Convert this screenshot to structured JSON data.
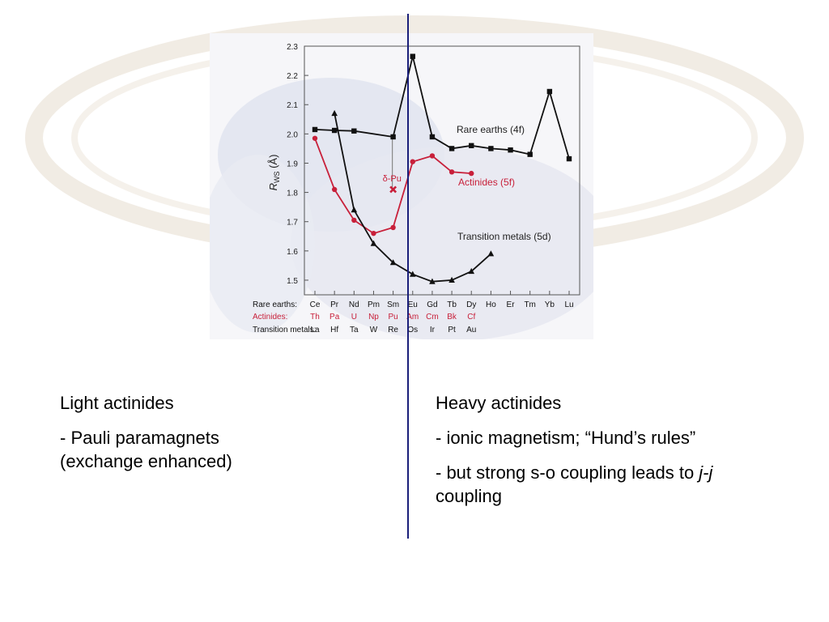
{
  "slide": {
    "left": {
      "heading": "Light actinides",
      "line1": "- Pauli paramagnets",
      "line2": "(exchange enhanced)"
    },
    "right": {
      "heading": "Heavy actinides",
      "bullet1": "- ionic magnetism; “Hund’s rules”",
      "bullet2_pre": "- but strong s-o coupling leads to ",
      "bullet2_italic": "j-j",
      "bullet2_post": "coupling"
    }
  },
  "colors": {
    "rare_earths": "#111111",
    "actinides": "#c8203a",
    "transition_metals": "#111111",
    "divider": "#1a1f7a"
  },
  "chart_data": {
    "type": "line",
    "ylabel_main": "R",
    "ylabel_sub": "WS",
    "ylabel_unit": " (Å)",
    "ylim": [
      1.45,
      2.3
    ],
    "yticks": [
      "1.5",
      "1.6",
      "1.7",
      "1.8",
      "1.9",
      "2.0",
      "2.1",
      "2.2",
      "2.3"
    ],
    "row_labels": [
      "Rare earths:",
      "Actinides:",
      "Transition metals:"
    ],
    "x_rare_earths": [
      "Ce",
      "Pr",
      "Nd",
      "Pm",
      "Sm",
      "Eu",
      "Gd",
      "Tb",
      "Dy",
      "Ho",
      "Er",
      "Tm",
      "Yb",
      "Lu"
    ],
    "x_actinides": [
      "Th",
      "Pa",
      "U",
      "Np",
      "Pu",
      "Am",
      "Cm",
      "Bk",
      "Cf"
    ],
    "x_transition_metals": [
      "La",
      "Hf",
      "Ta",
      "W",
      "Re",
      "Os",
      "Ir",
      "Pt",
      "Au"
    ],
    "series": [
      {
        "name": "Rare earths (4f)",
        "marker": "square",
        "points": [
          [
            0,
            2.015
          ],
          [
            1,
            2.012
          ],
          [
            2,
            2.01
          ],
          [
            4,
            1.99
          ],
          [
            5,
            2.265
          ],
          [
            6,
            1.99
          ],
          [
            7,
            1.95
          ],
          [
            8,
            1.96
          ],
          [
            9,
            1.95
          ],
          [
            10,
            1.945
          ],
          [
            11,
            1.93
          ],
          [
            12,
            2.145
          ],
          [
            13,
            1.915
          ]
        ]
      },
      {
        "name": "Actinides (5f)",
        "marker": "circle",
        "points": [
          [
            0,
            1.985
          ],
          [
            1,
            1.81
          ],
          [
            2,
            1.705
          ],
          [
            3,
            1.66
          ],
          [
            4,
            1.68
          ],
          [
            5,
            1.905
          ],
          [
            6,
            1.925
          ],
          [
            7,
            1.87
          ],
          [
            8,
            1.865
          ]
        ]
      },
      {
        "name": "Transition metals (5d)",
        "marker": "triangle",
        "points": [
          [
            1,
            2.07
          ],
          [
            2,
            1.74
          ],
          [
            3,
            1.625
          ],
          [
            4,
            1.56
          ],
          [
            5,
            1.52
          ],
          [
            6,
            1.495
          ],
          [
            7,
            1.5
          ],
          [
            8,
            1.53
          ],
          [
            9,
            1.59
          ]
        ]
      }
    ],
    "annotation": {
      "label": "δ-Pu",
      "x": 4,
      "y": 1.81
    }
  }
}
